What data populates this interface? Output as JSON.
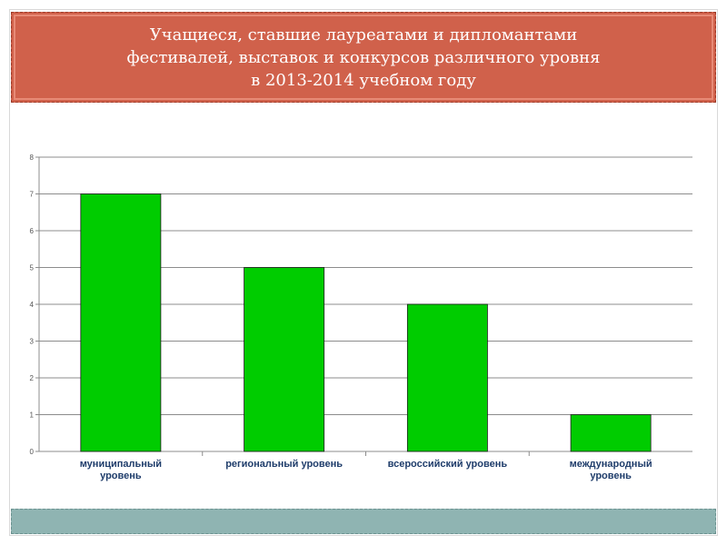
{
  "title": {
    "lines": [
      "Учащиеся, ставшие лауреатами и дипломантами",
      "фестивалей, выставок и конкурсов различного уровня",
      "в 2013-2014 учебном году"
    ]
  },
  "colors": {
    "title_bg": "#d0614b",
    "bar": "#00cc00",
    "footer_bg": "#8fb4b2"
  },
  "chart_data": {
    "type": "bar",
    "title": "",
    "xlabel": "",
    "ylabel": "",
    "ylim": [
      0,
      8
    ],
    "yticks": [
      0,
      1,
      2,
      3,
      4,
      5,
      6,
      7,
      8
    ],
    "grid": true,
    "categories": [
      [
        "муниципальный",
        "уровень"
      ],
      [
        "региональный уровень"
      ],
      [
        "всероссийский уровень"
      ],
      [
        "международный",
        "уровень"
      ]
    ],
    "values": [
      7,
      5,
      4,
      1
    ]
  }
}
